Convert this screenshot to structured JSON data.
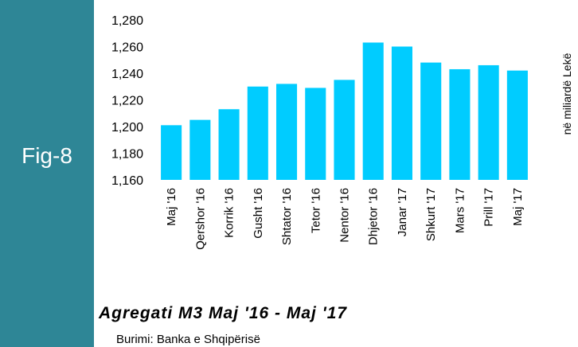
{
  "chart_data": {
    "type": "bar",
    "label": "Fig-8",
    "title": "Agregati M3 Maj '16 - Maj '17",
    "source": "Burimi: Banka e Shqipërisë",
    "y_axis_label": "në miliardë Lekë",
    "categories": [
      "Maj '16",
      "Qershor '16",
      "Korrik '16",
      "Gusht '16",
      "Shtator '16",
      "Tetor '16",
      "Nentor '16",
      "Dhjetor '16",
      "Janar '17",
      "Shkurt '17",
      "Mars '17",
      "Prill '17",
      "Maj '17"
    ],
    "values": [
      1201,
      1205,
      1213,
      1230,
      1232,
      1229,
      1235,
      1263,
      1260,
      1248,
      1243,
      1246,
      1242
    ],
    "color": "#00ccff",
    "ylim": [
      1160,
      1280
    ],
    "yticks": [
      {
        "value": 1160,
        "label": "1,160"
      },
      {
        "value": 1180,
        "label": "1,180"
      },
      {
        "value": 1200,
        "label": "1,200"
      },
      {
        "value": 1220,
        "label": "1,220"
      },
      {
        "value": 1240,
        "label": "1,240"
      },
      {
        "value": 1260,
        "label": "1,260"
      },
      {
        "value": 1280,
        "label": "1,280"
      }
    ],
    "grid": false
  }
}
